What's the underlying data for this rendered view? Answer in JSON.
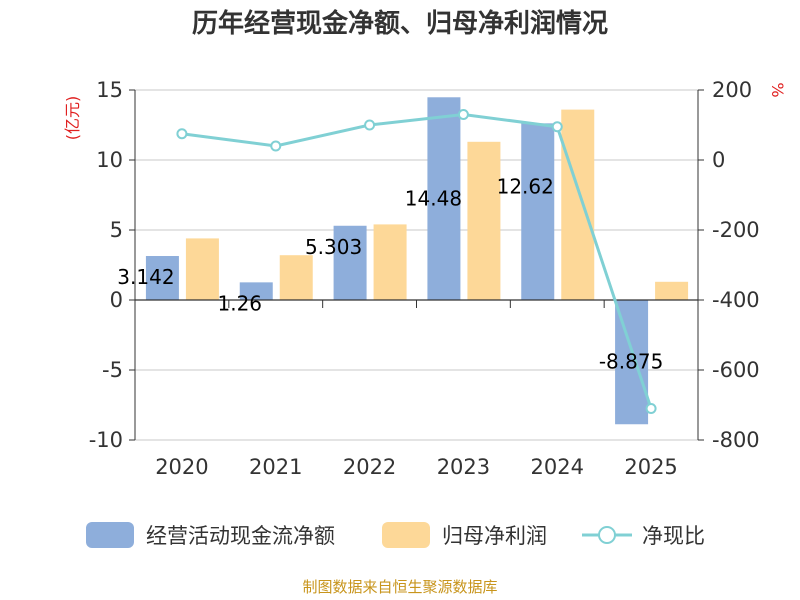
{
  "chart_data": {
    "type": "bar",
    "title": "历年经营现金净额、归母净利润情况",
    "categories": [
      "2020",
      "2021",
      "2022",
      "2023",
      "2024",
      "2025"
    ],
    "series": [
      {
        "name": "经营活动现金流净额",
        "type": "bar",
        "axis": "left",
        "color": "#8eaedb",
        "values": [
          3.142,
          1.26,
          5.303,
          14.48,
          12.62,
          -8.875
        ],
        "labels": [
          "3.142",
          "1.26",
          "5.303",
          "14.48",
          "12.62",
          "-8.875"
        ]
      },
      {
        "name": "归母净利润",
        "type": "bar",
        "axis": "left",
        "color": "#fdd898",
        "values": [
          4.4,
          3.2,
          5.4,
          11.3,
          13.6,
          1.3
        ]
      },
      {
        "name": "净现比",
        "type": "line",
        "axis": "right",
        "color": "#80d0d4",
        "values": [
          75,
          40,
          100,
          130,
          95,
          -710
        ]
      }
    ],
    "y_left": {
      "unit": "(亿元)",
      "ylim": [
        -10,
        15
      ],
      "ticks": [
        "15",
        "10",
        "5",
        "0",
        "-5",
        "-10"
      ]
    },
    "y_right": {
      "unit": "%",
      "ylim": [
        -800,
        200
      ],
      "ticks": [
        "200",
        "0",
        "-200",
        "-400",
        "-600",
        "-800"
      ]
    },
    "legend_position": "bottom",
    "source": "制图数据来自恒生聚源数据库"
  }
}
